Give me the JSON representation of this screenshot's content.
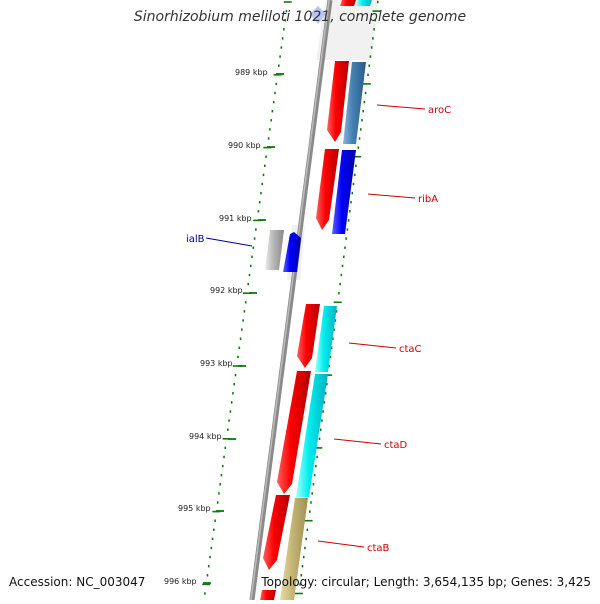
{
  "title": "Sinorhizobium meliloti 1021, complete genome",
  "footer": {
    "accession": "Accession: NC_003047",
    "topology": "Topology: circular; Length: 3,654,135 bp; Genes: 3,425"
  },
  "scale_labels": [
    "989 kbp",
    "990 kbp",
    "991 kbp",
    "992 kbp",
    "993 kbp",
    "994 kbp",
    "995 kbp",
    "996 kbp"
  ],
  "genes": [
    {
      "name": "aroC",
      "strand": "forward",
      "color": "#cc0000"
    },
    {
      "name": "ribA",
      "strand": "forward",
      "color": "#cc0000"
    },
    {
      "name": "ialB",
      "strand": "reverse",
      "color": "#000099"
    },
    {
      "name": "ctaC",
      "strand": "forward",
      "color": "#cc0000"
    },
    {
      "name": "ctaD",
      "strand": "forward",
      "color": "#cc0000"
    },
    {
      "name": "ctaB",
      "strand": "forward",
      "color": "#cc0000"
    }
  ],
  "colors": {
    "backbone": "#888888",
    "tick": "#117711",
    "cds_red": "#ff0000",
    "cds_blue": "#0000ff",
    "cds_steelblue": "#4682b4",
    "cds_cyan": "#00e5ee",
    "cds_khaki": "#c8b878",
    "cds_grey": "#aaaaaa"
  }
}
